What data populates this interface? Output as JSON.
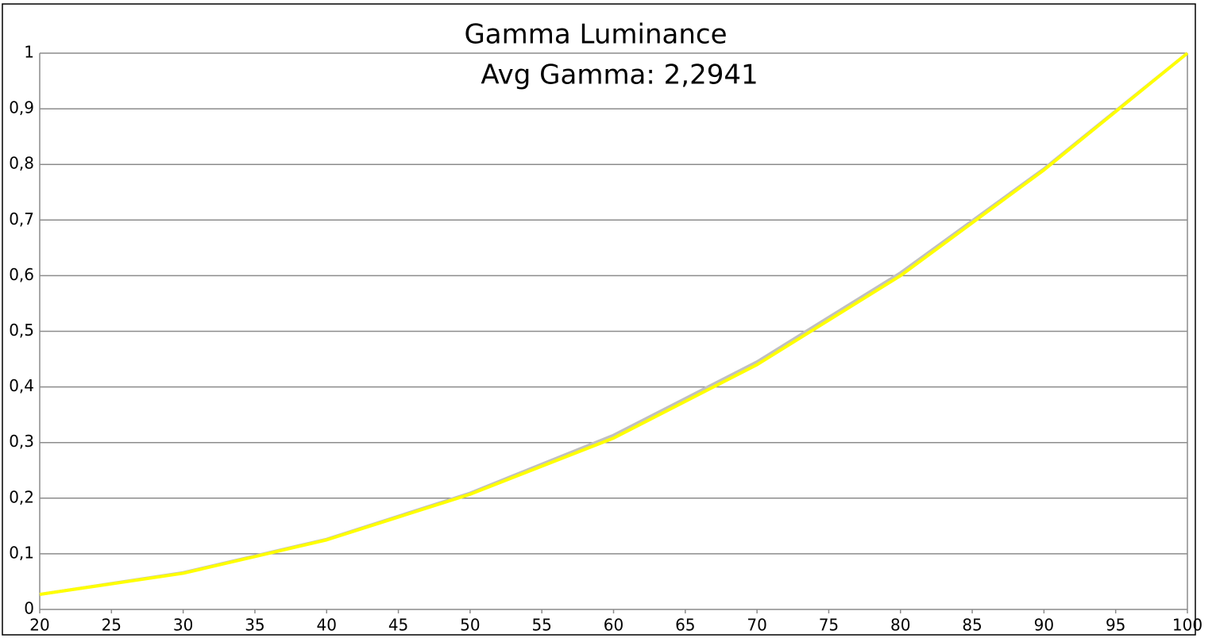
{
  "chart_data": {
    "type": "line",
    "title": "Gamma Luminance",
    "subtitle": "Avg Gamma: 2,2941",
    "x": [
      20,
      30,
      40,
      50,
      60,
      70,
      80,
      90,
      100
    ],
    "series": [
      {
        "color": "#c0c0c0",
        "values": [
          0.027,
          0.066,
          0.126,
          0.209,
          0.313,
          0.445,
          0.605,
          0.792,
          1
        ]
      },
      {
        "color": "#ffff00",
        "values": [
          0.027,
          0.065,
          0.125,
          0.207,
          0.308,
          0.44,
          0.6,
          0.79,
          1
        ]
      }
    ],
    "xlim": [
      20,
      100
    ],
    "xticks": [
      20,
      25,
      30,
      35,
      40,
      45,
      50,
      55,
      60,
      65,
      70,
      75,
      80,
      85,
      90,
      95,
      100
    ],
    "ylim": [
      0,
      1
    ],
    "yticks": [
      0,
      {
        "value": 0.1,
        "label": "0,1"
      },
      {
        "value": 0.2,
        "label": "0,2"
      },
      {
        "value": 0.3,
        "label": "0,3"
      },
      {
        "value": 0.4,
        "label": "0,4"
      },
      {
        "value": 0.5,
        "label": "0,5"
      },
      {
        "value": 0.6,
        "label": "0,6"
      },
      {
        "value": 0.7,
        "label": "0,7"
      },
      {
        "value": 0.8,
        "label": "0,8"
      },
      {
        "value": 0.9,
        "label": "0,9"
      },
      1
    ],
    "grid": true
  }
}
